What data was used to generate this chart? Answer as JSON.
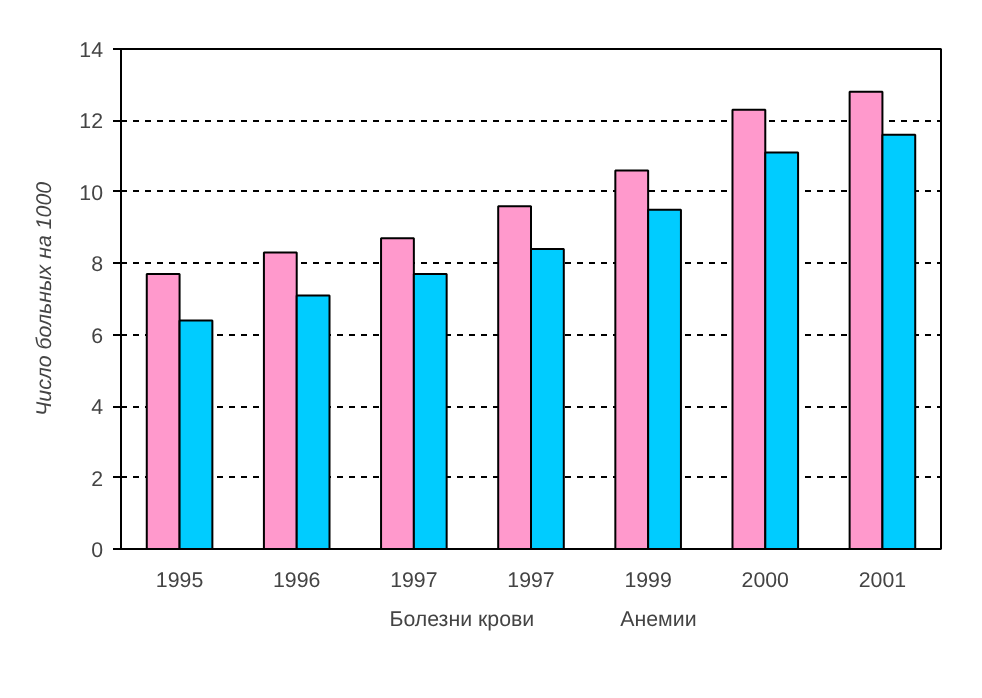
{
  "chart_data": {
    "type": "bar",
    "ylabel": "Число больных на 1000",
    "categories": [
      "1995",
      "1996",
      "1997",
      "1997",
      "1999",
      "2000",
      "2001"
    ],
    "series": [
      {
        "name": "Болезни крови",
        "color": "#ff99cc",
        "values": [
          7.7,
          8.3,
          8.7,
          9.6,
          10.6,
          12.3,
          12.8
        ]
      },
      {
        "name": "Анемии",
        "color": "#00ccff",
        "values": [
          6.4,
          7.1,
          7.7,
          8.4,
          9.5,
          11.1,
          11.6
        ]
      }
    ],
    "ylim": [
      0,
      14
    ],
    "yticks": [
      0,
      2,
      4,
      6,
      8,
      10,
      12,
      14
    ],
    "grid": "y",
    "legend": "bottom"
  }
}
